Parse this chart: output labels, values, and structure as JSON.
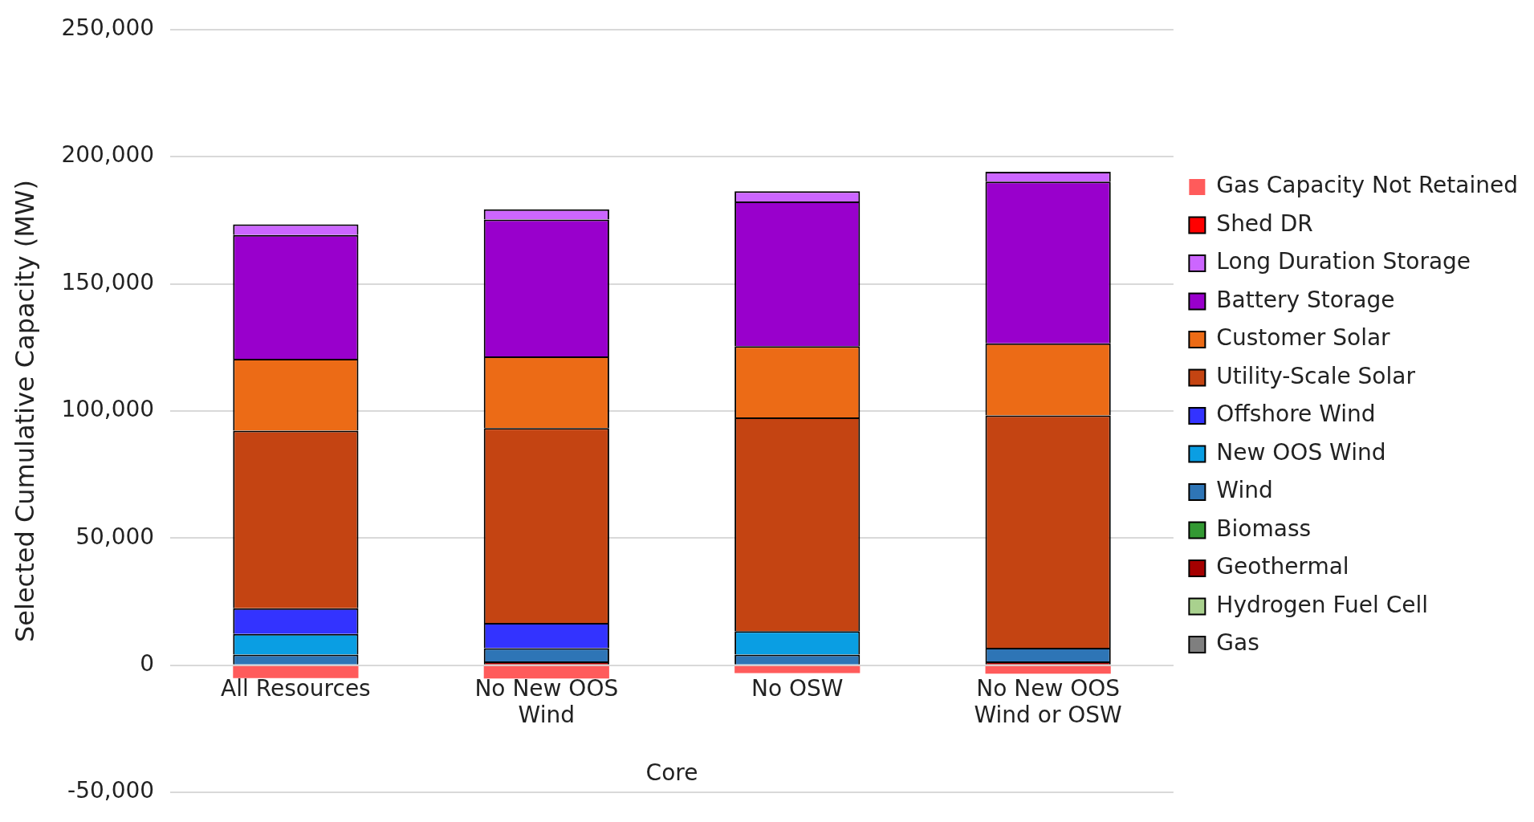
{
  "chart_data": {
    "type": "bar",
    "stacked": true,
    "ylabel": "Selected Cumulative Capacity (MW)",
    "categories": [
      "All Resources",
      "No New OOS Wind",
      "No OSW",
      "No New OOS Wind or OSW"
    ],
    "series": [
      {
        "name": "Gas",
        "color": "#7f7f7f",
        "values": [
          0,
          0,
          0,
          0
        ]
      },
      {
        "name": "Hydrogen Fuel Cell",
        "color": "#a9d18e",
        "values": [
          0,
          0,
          0,
          0
        ]
      },
      {
        "name": "Geothermal",
        "color": "#a50000",
        "values": [
          0,
          1500,
          0,
          1500
        ]
      },
      {
        "name": "Biomass",
        "color": "#339933",
        "values": [
          0,
          0,
          0,
          0
        ]
      },
      {
        "name": "Wind",
        "color": "#2e75b6",
        "values": [
          4200,
          5200,
          4200,
          5400
        ]
      },
      {
        "name": "New OOS Wind",
        "color": "#0a9ee3",
        "values": [
          8100,
          0,
          9200,
          0
        ]
      },
      {
        "name": "Offshore Wind",
        "color": "#3333ff",
        "values": [
          10100,
          10000,
          0,
          0
        ]
      },
      {
        "name": "Utility-Scale Solar",
        "color": "#c44412",
        "values": [
          69900,
          76600,
          84100,
          91400
        ]
      },
      {
        "name": "Customer Solar",
        "color": "#ec6b16",
        "values": [
          28200,
          28200,
          28000,
          28300
        ]
      },
      {
        "name": "Battery Storage",
        "color": "#9900cc",
        "values": [
          48700,
          53800,
          56900,
          63600
        ]
      },
      {
        "name": "Long Duration Storage",
        "color": "#cc66ff",
        "values": [
          4200,
          4000,
          4000,
          3900
        ]
      },
      {
        "name": "Shed DR",
        "color": "#ff0000",
        "values": [
          0,
          0,
          0,
          0
        ]
      },
      {
        "name": "Gas Capacity Not Retained",
        "color": "#ff5b5b",
        "values": [
          -5000,
          -5200,
          -3100,
          -3300
        ]
      }
    ],
    "ylim": [
      -50000,
      250000
    ],
    "yticks": [
      {
        "value": -50000,
        "label": "-50,000"
      },
      0,
      {
        "value": 50000,
        "label": "50,000"
      },
      {
        "value": 100000,
        "label": "100,000"
      },
      {
        "value": 150000,
        "label": "150,000"
      },
      {
        "value": 200000,
        "label": "200,000"
      },
      {
        "value": 250000,
        "label": "250,000"
      }
    ],
    "grid": "y",
    "legend": "right",
    "annotations": [
      "Core"
    ]
  }
}
